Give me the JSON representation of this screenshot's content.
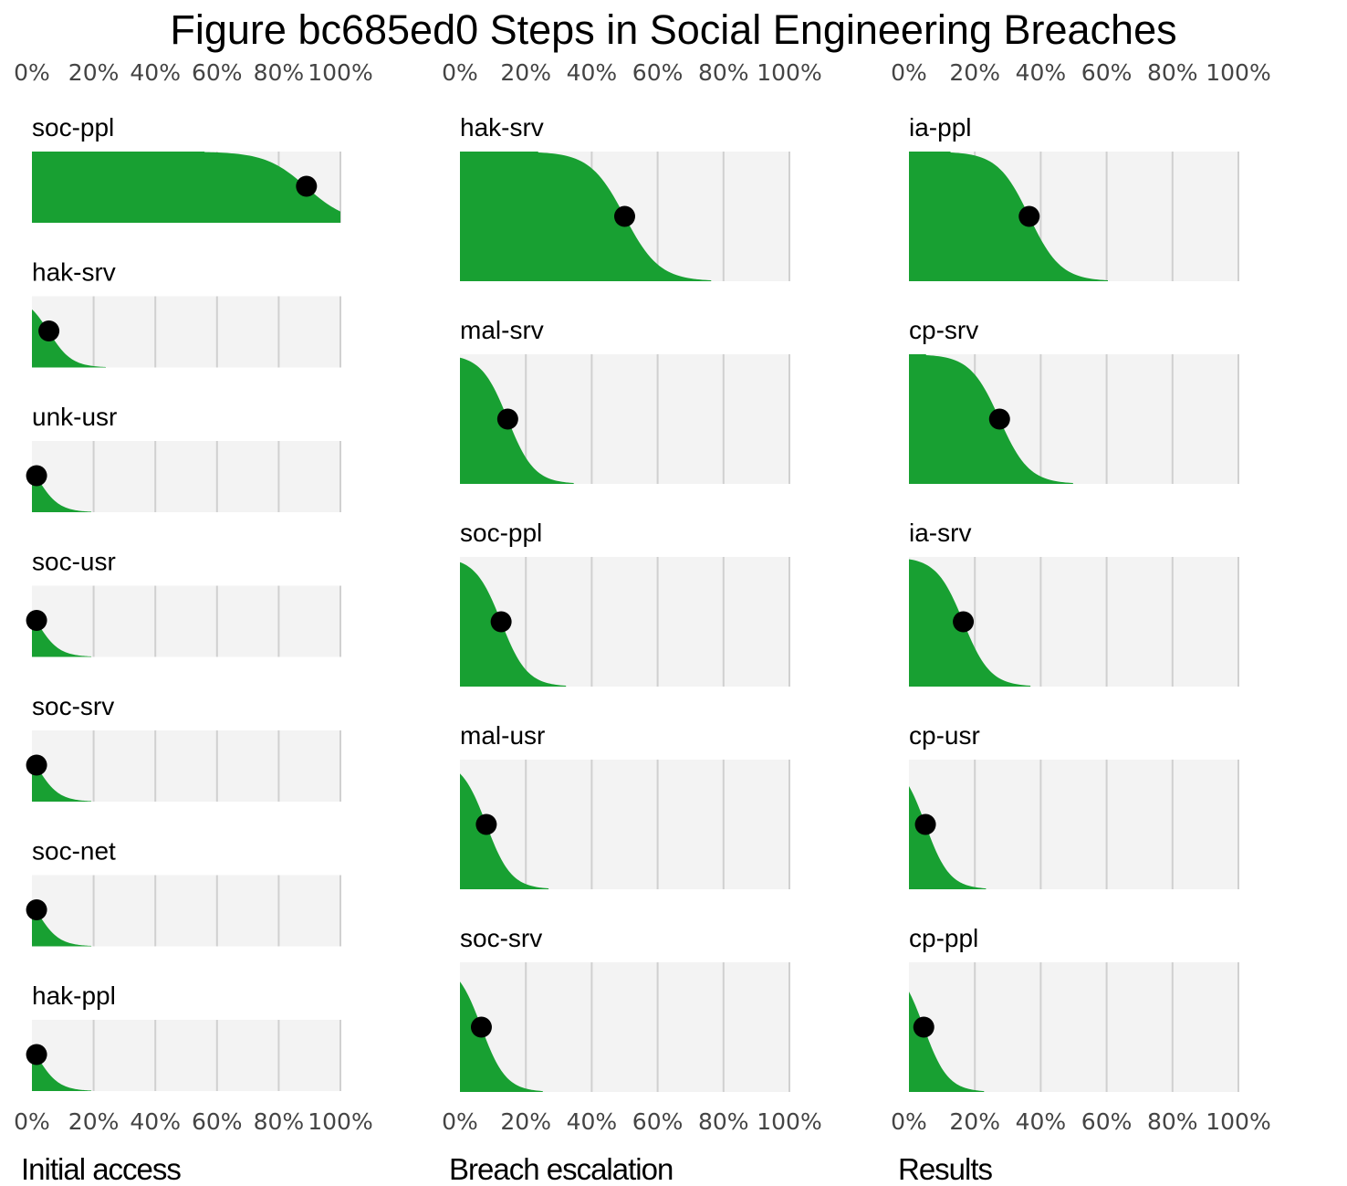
{
  "colors": {
    "fill": "#18a032",
    "track": "#f3f3f3",
    "grid": "#d0d0d0",
    "dot": "#000000"
  },
  "chart_data": {
    "type": "area",
    "title": "Figure bc685ed0 Steps in Social Engineering Breaches",
    "tick_labels": [
      "0%",
      "20%",
      "40%",
      "60%",
      "80%",
      "100%"
    ],
    "xlim": [
      0,
      100
    ],
    "panels": [
      {
        "title": "Initial access",
        "rows": [
          {
            "label": "soc-ppl",
            "value": 89
          },
          {
            "label": "hak-srv",
            "value": 5.5
          },
          {
            "label": "unk-usr",
            "value": 1.5
          },
          {
            "label": "soc-usr",
            "value": 1.5
          },
          {
            "label": "soc-srv",
            "value": 1.5
          },
          {
            "label": "soc-net",
            "value": 1.5
          },
          {
            "label": "hak-ppl",
            "value": 1.5
          }
        ]
      },
      {
        "title": "Breach escalation",
        "rows": [
          {
            "label": "hak-srv",
            "value": 50
          },
          {
            "label": "mal-srv",
            "value": 14.5
          },
          {
            "label": "soc-ppl",
            "value": 12.5
          },
          {
            "label": "mal-usr",
            "value": 8
          },
          {
            "label": "soc-srv",
            "value": 6.5
          }
        ]
      },
      {
        "title": "Results",
        "rows": [
          {
            "label": "ia-ppl",
            "value": 36.5
          },
          {
            "label": "cp-srv",
            "value": 27.5
          },
          {
            "label": "ia-srv",
            "value": 16.5
          },
          {
            "label": "cp-usr",
            "value": 5
          },
          {
            "label": "cp-ppl",
            "value": 4.5
          }
        ]
      }
    ]
  }
}
